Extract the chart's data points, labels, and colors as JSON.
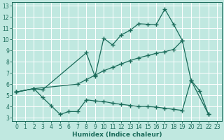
{
  "xlabel": "Humidex (Indice chaleur)",
  "bg_color": "#c0e8e0",
  "grid_color": "#ffffff",
  "line_color": "#1a6b5a",
  "xlim_min": -0.5,
  "xlim_max": 23.5,
  "ylim_min": 2.7,
  "ylim_max": 13.3,
  "xticks": [
    0,
    1,
    2,
    3,
    4,
    5,
    6,
    7,
    8,
    9,
    10,
    11,
    12,
    13,
    14,
    15,
    16,
    17,
    18,
    19,
    20,
    21,
    22,
    23
  ],
  "yticks": [
    3,
    4,
    5,
    6,
    7,
    8,
    9,
    10,
    11,
    12,
    13
  ],
  "line_top": {
    "x": [
      0,
      2,
      3,
      8,
      9,
      10,
      11,
      12,
      13,
      14,
      15,
      16,
      17,
      18,
      19
    ],
    "y": [
      5.3,
      5.6,
      5.5,
      8.8,
      6.7,
      10.1,
      9.5,
      10.4,
      10.8,
      11.4,
      11.35,
      11.3,
      12.7,
      11.35,
      9.9
    ]
  },
  "line_mid": {
    "x": [
      0,
      2,
      7,
      8,
      9,
      10,
      11,
      12,
      13,
      14,
      15,
      16,
      17,
      18,
      19,
      20,
      22
    ],
    "y": [
      5.3,
      5.6,
      6.0,
      6.4,
      6.8,
      7.2,
      7.5,
      7.8,
      8.1,
      8.35,
      8.55,
      8.75,
      8.9,
      9.1,
      9.9,
      6.35,
      3.3
    ]
  },
  "line_bot": {
    "x": [
      0,
      2,
      3,
      4,
      5,
      6,
      7,
      8,
      9,
      10,
      11,
      12,
      13,
      14,
      15,
      16,
      17,
      18,
      19,
      20,
      21,
      22
    ],
    "y": [
      5.3,
      5.6,
      4.8,
      4.05,
      3.3,
      3.55,
      3.55,
      4.6,
      4.5,
      4.45,
      4.3,
      4.2,
      4.1,
      4.0,
      4.0,
      3.95,
      3.85,
      3.75,
      3.65,
      6.35,
      5.4,
      3.3
    ]
  }
}
